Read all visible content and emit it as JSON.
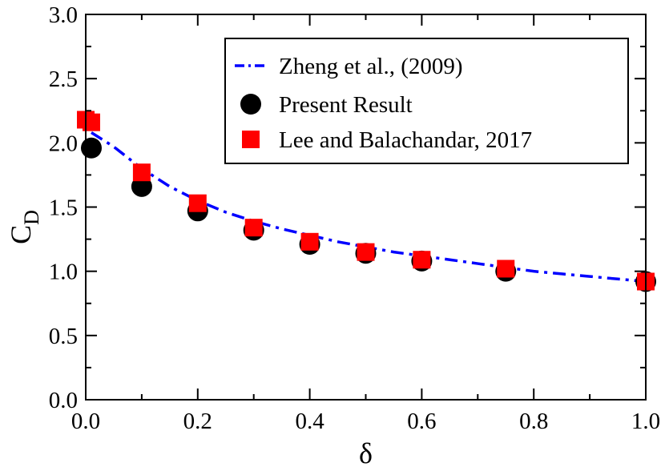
{
  "chart_data": {
    "type": "scatter",
    "xlabel": "δ",
    "ylabel_main": "C",
    "ylabel_sub": "D",
    "xlim": [
      0.0,
      1.0
    ],
    "ylim": [
      0.0,
      3.0
    ],
    "x_ticks": [
      0.0,
      0.2,
      0.4,
      0.6,
      0.8,
      1.0
    ],
    "x_tick_labels": [
      "0.0",
      "0.2",
      "0.4",
      "0.6",
      "0.8",
      "1.0"
    ],
    "y_ticks": [
      0.0,
      0.5,
      1.0,
      1.5,
      2.0,
      2.5,
      3.0
    ],
    "y_tick_labels": [
      "0.0",
      "0.5",
      "1.0",
      "1.5",
      "2.0",
      "2.5",
      "3.0"
    ],
    "grid": false,
    "legend_position": "top-right",
    "series": [
      {
        "name": "Zheng et al., (2009)",
        "style": "dash-dot line",
        "color": "#0000ff",
        "x": [
          0.01,
          0.05,
          0.1,
          0.15,
          0.2,
          0.25,
          0.3,
          0.35,
          0.4,
          0.45,
          0.5,
          0.55,
          0.6,
          0.65,
          0.7,
          0.75,
          0.8,
          0.85,
          0.9,
          0.95,
          1.0
        ],
        "y": [
          2.08,
          1.97,
          1.8,
          1.66,
          1.55,
          1.46,
          1.39,
          1.33,
          1.28,
          1.23,
          1.19,
          1.15,
          1.12,
          1.09,
          1.06,
          1.03,
          1.0,
          0.98,
          0.96,
          0.94,
          0.92
        ]
      },
      {
        "name": "Present Result",
        "style": "circle marker",
        "color": "#000000",
        "x": [
          0.01,
          0.1,
          0.2,
          0.3,
          0.4,
          0.5,
          0.6,
          0.75,
          1.0
        ],
        "y": [
          1.96,
          1.66,
          1.47,
          1.32,
          1.21,
          1.14,
          1.08,
          1.0,
          0.92
        ]
      },
      {
        "name": "Lee and Balachandar, 2017",
        "style": "square marker",
        "color": "#ff0000",
        "x": [
          0.0,
          0.01,
          0.1,
          0.2,
          0.3,
          0.4,
          0.5,
          0.6,
          0.75,
          1.0
        ],
        "y": [
          2.18,
          2.16,
          1.77,
          1.53,
          1.34,
          1.23,
          1.15,
          1.09,
          1.02,
          0.92
        ]
      }
    ]
  }
}
